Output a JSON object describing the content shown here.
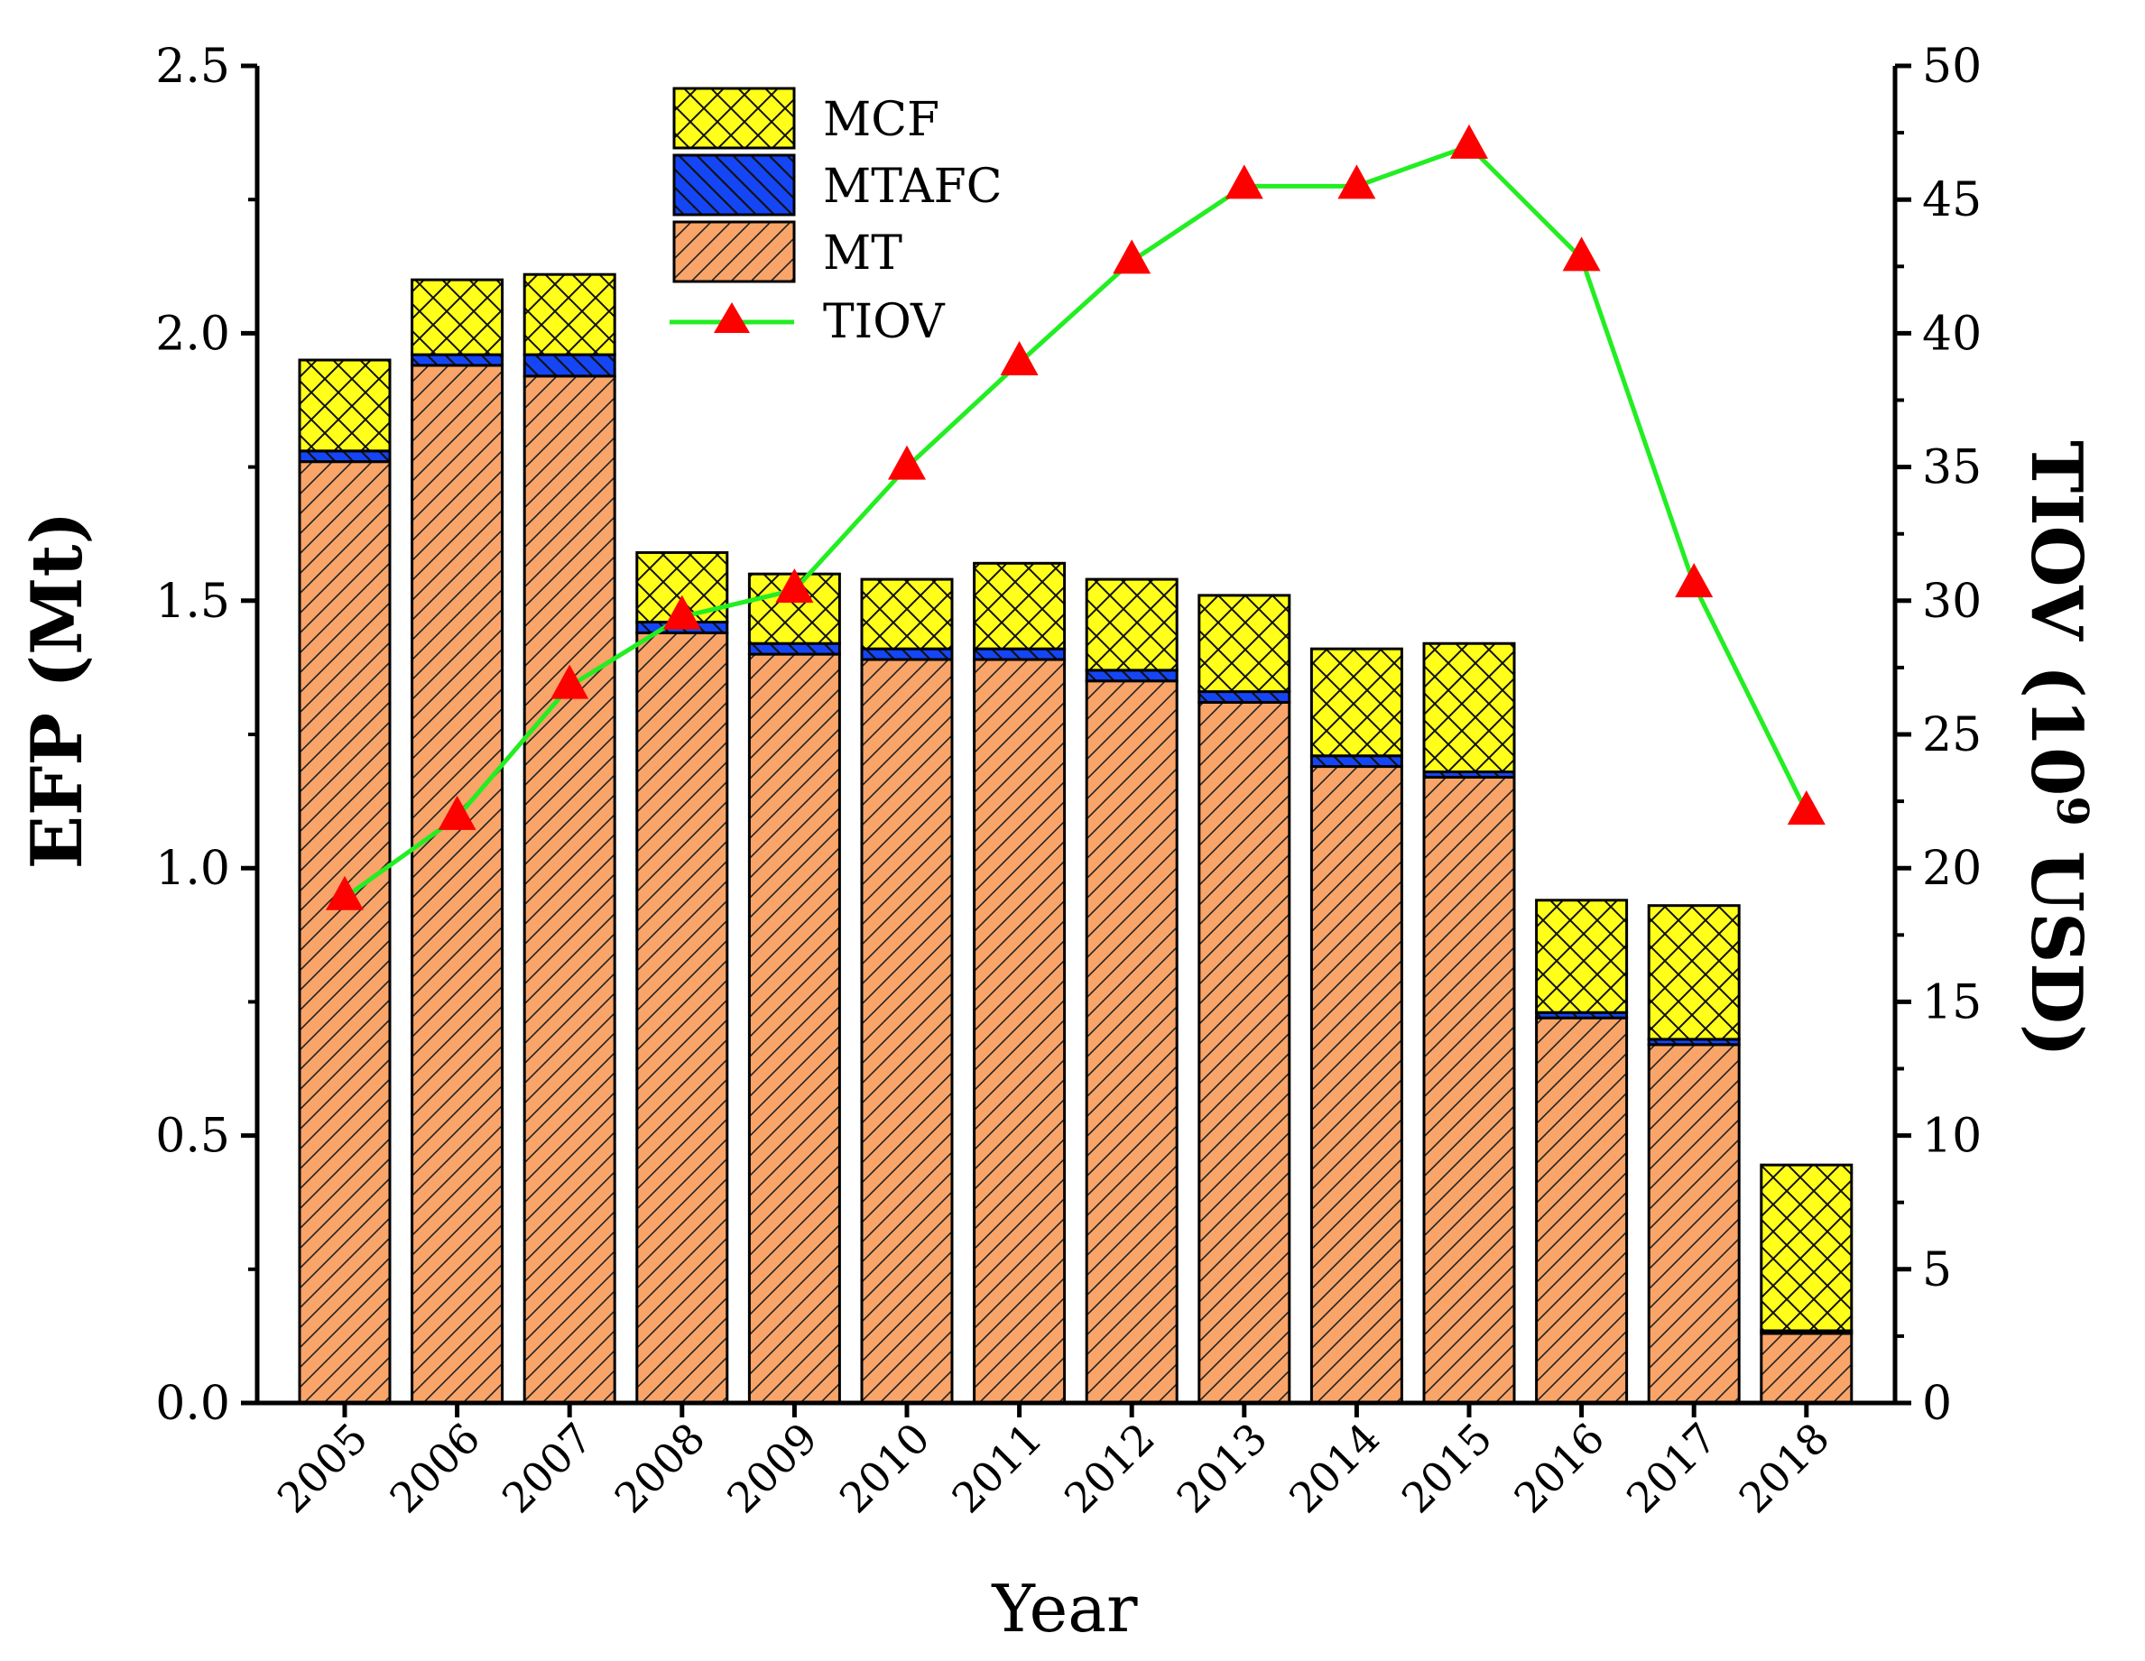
{
  "chart_data": {
    "type": "bar",
    "stacked": true,
    "categories": [
      "2005",
      "2006",
      "2007",
      "2008",
      "2009",
      "2010",
      "2011",
      "2012",
      "2013",
      "2014",
      "2015",
      "2016",
      "2017",
      "2018"
    ],
    "series": [
      {
        "name": "MT",
        "axis": "left",
        "color": "#F9A468",
        "pattern": "diagonal-lines",
        "values": [
          1.76,
          1.94,
          1.92,
          1.44,
          1.4,
          1.39,
          1.39,
          1.35,
          1.31,
          1.19,
          1.17,
          0.72,
          0.67,
          0.13
        ]
      },
      {
        "name": "MTAFC",
        "axis": "left",
        "color": "#1546F5",
        "pattern": "back-diagonal-lines",
        "values": [
          0.02,
          0.02,
          0.04,
          0.02,
          0.02,
          0.02,
          0.02,
          0.02,
          0.02,
          0.02,
          0.01,
          0.01,
          0.01,
          0.005
        ]
      },
      {
        "name": "MCF",
        "axis": "left",
        "color": "#FFFF1A",
        "pattern": "cross-hatch",
        "values": [
          0.17,
          0.14,
          0.15,
          0.13,
          0.13,
          0.13,
          0.16,
          0.17,
          0.18,
          0.2,
          0.24,
          0.21,
          0.25,
          0.31
        ]
      },
      {
        "name": "TIOV",
        "axis": "right",
        "type": "line",
        "line_color": "#22EE22",
        "marker": "triangle",
        "marker_color": "#FF0000",
        "values": [
          18.9,
          21.9,
          26.8,
          29.4,
          30.4,
          35.0,
          38.9,
          42.7,
          45.5,
          45.5,
          47.0,
          42.8,
          30.6,
          22.1
        ]
      }
    ],
    "title": "",
    "xlabel": "Year",
    "ylabel": "EFP (Mt)",
    "y2label_main": "TIOV (10",
    "y2label_sup": "9",
    "y2label_tail": " USD)",
    "ylim": [
      0,
      2.5
    ],
    "y2lim": [
      0,
      50
    ],
    "yticks": [
      "0.0",
      "0.5",
      "1.0",
      "1.5",
      "2.0",
      "2.5"
    ],
    "y2ticks": [
      "0",
      "5",
      "10",
      "15",
      "20",
      "25",
      "30",
      "35",
      "40",
      "45",
      "50"
    ],
    "legend": [
      "MCF",
      "MTAFC",
      "MT",
      "TIOV"
    ],
    "legend_position": "top-center",
    "grid": false
  }
}
